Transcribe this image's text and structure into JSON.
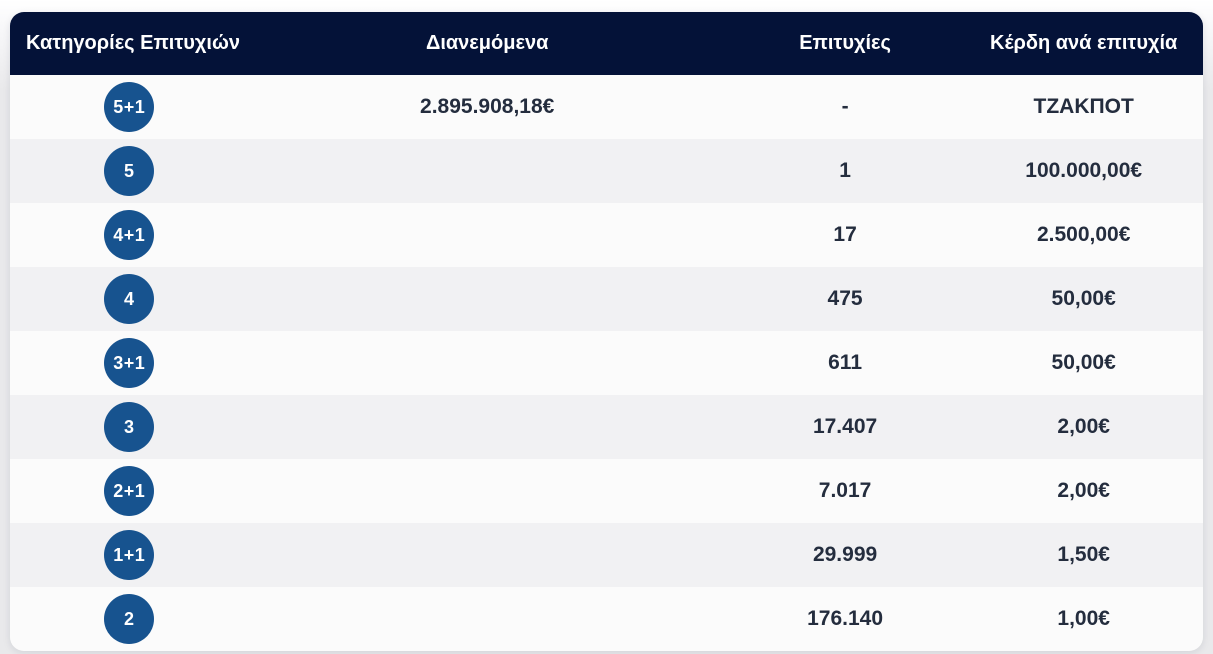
{
  "table": {
    "headers": [
      "Κατηγορίες Επιτυχιών",
      "Διανεμόμενα",
      "Επιτυχίες",
      "Κέρδη ανά επιτυχία"
    ],
    "rows": [
      {
        "category": "5+1",
        "distributed": "2.895.908,18€",
        "wins": "-",
        "prize": "ΤΖΑΚΠΟΤ"
      },
      {
        "category": "5",
        "distributed": "",
        "wins": "1",
        "prize": "100.000,00€"
      },
      {
        "category": "4+1",
        "distributed": "",
        "wins": "17",
        "prize": "2.500,00€"
      },
      {
        "category": "4",
        "distributed": "",
        "wins": "475",
        "prize": "50,00€"
      },
      {
        "category": "3+1",
        "distributed": "",
        "wins": "611",
        "prize": "50,00€"
      },
      {
        "category": "3",
        "distributed": "",
        "wins": "17.407",
        "prize": "2,00€"
      },
      {
        "category": "2+1",
        "distributed": "",
        "wins": "7.017",
        "prize": "2,00€"
      },
      {
        "category": "1+1",
        "distributed": "",
        "wins": "29.999",
        "prize": "1,50€"
      },
      {
        "category": "2",
        "distributed": "",
        "wins": "176.140",
        "prize": "1,00€"
      }
    ]
  },
  "colors": {
    "header_bg": "#041238",
    "header_text": "#ffffff",
    "badge_bg": "#17538f",
    "row_odd": "#fbfbfb",
    "row_even": "#f1f1f3",
    "cell_text": "#242d3e"
  }
}
